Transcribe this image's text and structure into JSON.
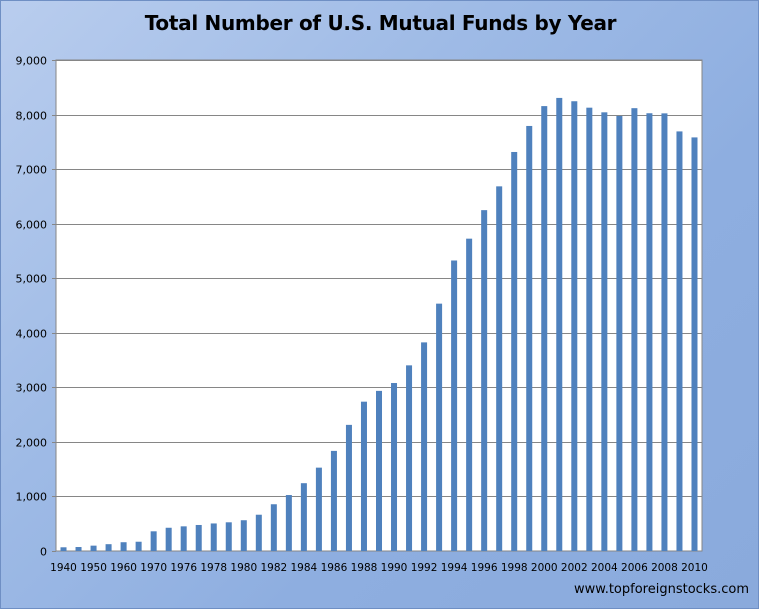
{
  "chart_data": {
    "type": "bar",
    "title": "Total Number of U.S. Mutual Funds by Year",
    "xlabel": "",
    "ylabel": "",
    "ylim": [
      0,
      9000
    ],
    "yticks": [
      "0",
      "1,000",
      "2,000",
      "3,000",
      "4,000",
      "5,000",
      "6,000",
      "7,000",
      "8,000",
      "9,000"
    ],
    "categories": [
      "1940",
      "1945",
      "1950",
      "1955",
      "1960",
      "1965",
      "1970",
      "1975",
      "1976",
      "1977",
      "1978",
      "1979",
      "1980",
      "1981",
      "1982",
      "1983",
      "1984",
      "1985",
      "1986",
      "1987",
      "1988",
      "1989",
      "1990",
      "1991",
      "1992",
      "1993",
      "1994",
      "1995",
      "1996",
      "1997",
      "1998",
      "1999",
      "2000",
      "2001",
      "2002",
      "2003",
      "2004",
      "2005",
      "2006",
      "2007",
      "2008",
      "2009",
      "2010"
    ],
    "xtick_labels": [
      "1940",
      "1950",
      "1960",
      "1970",
      "1976",
      "1978",
      "1980",
      "1982",
      "1984",
      "1986",
      "1988",
      "1990",
      "1992",
      "1994",
      "1996",
      "1998",
      "2000",
      "2002",
      "2004",
      "2006",
      "2008",
      "2010"
    ],
    "values": [
      68,
      73,
      98,
      125,
      161,
      170,
      361,
      426,
      452,
      477,
      505,
      526,
      564,
      665,
      857,
      1026,
      1243,
      1528,
      1835,
      2312,
      2737,
      2935,
      3079,
      3403,
      3824,
      4534,
      5325,
      5725,
      6248,
      6684,
      7314,
      7791,
      8155,
      8305,
      8244,
      8126,
      8041,
      7975,
      8117,
      8024,
      8022,
      7691,
      7581
    ],
    "grid": true,
    "legend": "none",
    "bar_color": "#4f81bd",
    "grid_color": "#868686"
  },
  "watermark": "www.topforeignstocks.com"
}
